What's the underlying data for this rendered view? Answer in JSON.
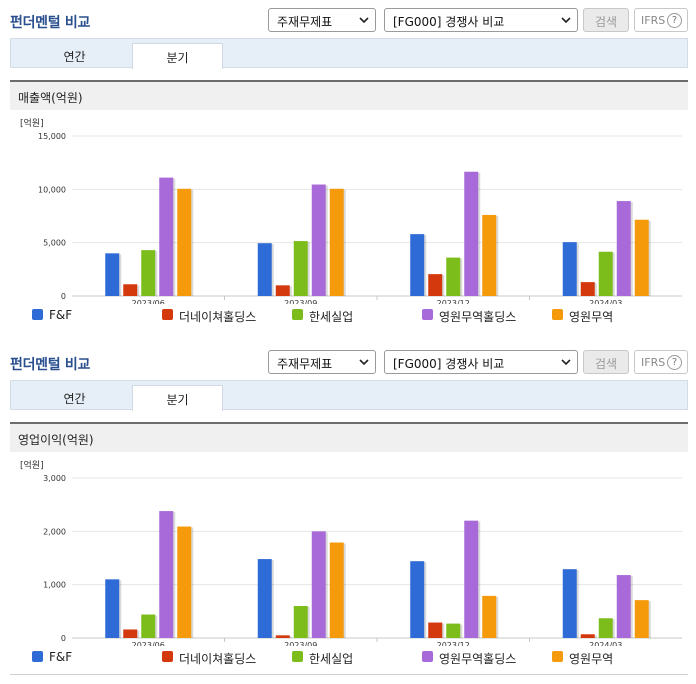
{
  "sections": [
    {
      "title": "펀더멘털 비교",
      "select1": "주재무제표",
      "select2": "[FG000] 경쟁사 비교",
      "search_label": "검색",
      "ifrs_label": "IFRS",
      "help_label": "?",
      "tabs": [
        "연간",
        "분기"
      ],
      "active_tab": 1,
      "chart_title": "매출액(억원)"
    },
    {
      "title": "펀더멘털 비교",
      "select1": "주재무제표",
      "select2": "[FG000] 경쟁사 비교",
      "search_label": "검색",
      "ifrs_label": "IFRS",
      "help_label": "?",
      "tabs": [
        "연간",
        "분기"
      ],
      "active_tab": 1,
      "chart_title": "영업이익(억원)"
    }
  ],
  "colors": {
    "F&F": "#2f6bd6",
    "더네이쳐홀딩스": "#d4380d",
    "한세실업": "#7cbd1c",
    "영원무역홀딩스": "#a86ad8",
    "영원무역": "#f59a0b"
  },
  "chart_data": [
    {
      "type": "bar",
      "title": "매출액(억원)",
      "unit_label": "[억원]",
      "categories": [
        "2023/06",
        "2023/09",
        "2023/12",
        "2024/03"
      ],
      "ylim": [
        0,
        15000
      ],
      "yticks": [
        0,
        5000,
        10000,
        15000
      ],
      "ytick_labels": [
        "0",
        "5,000",
        "10,000",
        "15,000"
      ],
      "grid": true,
      "legend_position": "bottom",
      "series": [
        {
          "name": "F&F",
          "values": [
            4000,
            4950,
            5800,
            5050
          ]
        },
        {
          "name": "더네이쳐홀딩스",
          "values": [
            1100,
            1000,
            2050,
            1300
          ]
        },
        {
          "name": "한세실업",
          "values": [
            4300,
            5150,
            3600,
            4150
          ]
        },
        {
          "name": "영원무역홀딩스",
          "values": [
            11100,
            10450,
            11650,
            8900
          ]
        },
        {
          "name": "영원무역",
          "values": [
            10050,
            10050,
            7600,
            7150
          ]
        }
      ]
    },
    {
      "type": "bar",
      "title": "영업이익(억원)",
      "unit_label": "[억원]",
      "categories": [
        "2023/06",
        "2023/09",
        "2023/12",
        "2024/03"
      ],
      "ylim": [
        0,
        3000
      ],
      "yticks": [
        0,
        1000,
        2000,
        3000
      ],
      "ytick_labels": [
        "0",
        "1,000",
        "2,000",
        "3,000"
      ],
      "grid": true,
      "legend_position": "bottom",
      "series": [
        {
          "name": "F&F",
          "values": [
            1100,
            1480,
            1440,
            1290
          ]
        },
        {
          "name": "더네이쳐홀딩스",
          "values": [
            160,
            50,
            290,
            70
          ]
        },
        {
          "name": "한세실업",
          "values": [
            440,
            600,
            270,
            370
          ]
        },
        {
          "name": "영원무역홀딩스",
          "values": [
            2380,
            2000,
            2200,
            1180
          ]
        },
        {
          "name": "영원무역",
          "values": [
            2090,
            1790,
            790,
            710
          ]
        }
      ]
    }
  ]
}
